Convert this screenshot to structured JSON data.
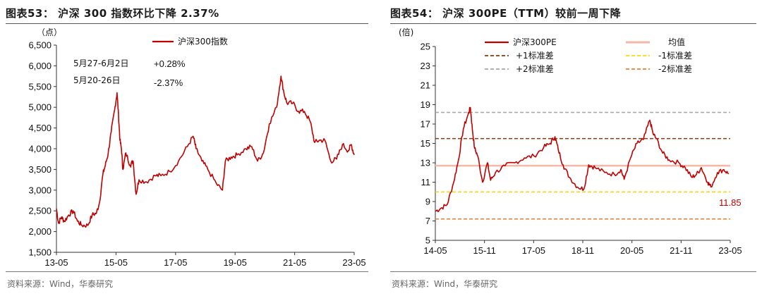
{
  "left": {
    "title": "图表53： 沪深 300 指数环比下降 2.37%",
    "source": "资料来源：Wind，华泰研究",
    "unit_label": "（点）",
    "annotations": [
      {
        "period": "5月27-6月2日",
        "change": "+0.28%"
      },
      {
        "period": "5月20-26日",
        "change": "-2.37%"
      }
    ]
  },
  "right": {
    "title": "图表54： 沪深 300PE（TTM）较前一周下降",
    "source": "资料来源：Wind，华泰研究",
    "unit_label": "(倍)",
    "last_value_label": "11.85"
  },
  "colors": {
    "series": "#c00000",
    "mean": "#f4b8a8",
    "plus1": "#843c0c",
    "plus2": "#a6a6a6",
    "minus1": "#ffd700",
    "minus2": "#ed7d31"
  },
  "chart_data": [
    {
      "type": "line",
      "title": "沪深 300 指数环比下降 2.37%",
      "ylabel": "（点）",
      "ylim": [
        1500,
        6500
      ],
      "yticks": [
        1500,
        2000,
        2500,
        3000,
        3500,
        4000,
        4500,
        5000,
        5500,
        6000,
        6500
      ],
      "xticks": [
        "13-05",
        "15-05",
        "17-05",
        "19-05",
        "21-05",
        "23-05"
      ],
      "x_range": [
        2013.33,
        2023.5
      ],
      "legend": "top-center",
      "grid": false,
      "series": [
        {
          "name": "沪深300指数",
          "x": [
            2013.33,
            2013.4,
            2013.5,
            2013.6,
            2013.75,
            2013.9,
            2014.05,
            2014.2,
            2014.4,
            2014.55,
            2014.7,
            2014.8,
            2014.92,
            2015.0,
            2015.1,
            2015.2,
            2015.32,
            2015.4,
            2015.45,
            2015.5,
            2015.55,
            2015.6,
            2015.7,
            2015.85,
            2015.95,
            2016.05,
            2016.15,
            2016.4,
            2016.7,
            2016.9,
            2017.2,
            2017.5,
            2017.8,
            2018.0,
            2018.1,
            2018.3,
            2018.5,
            2018.8,
            2019.0,
            2019.1,
            2019.3,
            2019.5,
            2019.8,
            2020.0,
            2020.2,
            2020.4,
            2020.6,
            2020.85,
            2021.0,
            2021.1,
            2021.2,
            2021.4,
            2021.6,
            2021.8,
            2022.0,
            2022.15,
            2022.3,
            2022.5,
            2022.7,
            2022.9,
            2023.1,
            2023.3,
            2023.4,
            2023.5
          ],
          "values": [
            2550,
            2200,
            2350,
            2250,
            2400,
            2500,
            2250,
            2150,
            2150,
            2400,
            2450,
            2700,
            3400,
            3600,
            3900,
            4400,
            4950,
            5350,
            4800,
            4200,
            4000,
            3500,
            3900,
            3600,
            3700,
            2900,
            3250,
            3200,
            3350,
            3350,
            3450,
            3700,
            4050,
            4300,
            4000,
            3700,
            3500,
            3150,
            3000,
            3700,
            3800,
            3850,
            4000,
            4050,
            3700,
            3900,
            4600,
            5000,
            5750,
            5350,
            5100,
            5100,
            4900,
            4900,
            4650,
            4150,
            4200,
            4200,
            3700,
            3750,
            4100,
            3950,
            4100,
            3850
          ]
        }
      ]
    },
    {
      "type": "line",
      "title": "沪深 300PE（TTM）较前一周下降",
      "ylabel": "(倍)",
      "ylim": [
        5,
        25
      ],
      "yticks": [
        5,
        7,
        9,
        11,
        13,
        15,
        17,
        19,
        21,
        23,
        25
      ],
      "xticks": [
        "14-05",
        "15-11",
        "17-05",
        "18-11",
        "20-05",
        "21-11",
        "23-05"
      ],
      "x_range": [
        2014.33,
        2023.5
      ],
      "legend": "top",
      "grid": false,
      "reference_lines": [
        {
          "name": "均值",
          "value": 12.7,
          "style": "solid"
        },
        {
          "name": "+1标准差",
          "value": 15.5,
          "style": "dashed"
        },
        {
          "name": "-1标准差",
          "value": 10.0,
          "style": "dashed"
        },
        {
          "name": "+2标准差",
          "value": 18.2,
          "style": "dashed"
        },
        {
          "name": "-2标准差",
          "value": 7.2,
          "style": "dashed"
        }
      ],
      "series": [
        {
          "name": "沪深300PE",
          "x": [
            2014.33,
            2014.5,
            2014.7,
            2014.9,
            2015.05,
            2015.2,
            2015.35,
            2015.42,
            2015.48,
            2015.55,
            2015.65,
            2015.8,
            2015.95,
            2016.05,
            2016.2,
            2016.5,
            2016.8,
            2017.1,
            2017.4,
            2017.7,
            2017.9,
            2018.05,
            2018.15,
            2018.3,
            2018.5,
            2018.75,
            2018.95,
            2019.1,
            2019.3,
            2019.6,
            2019.9,
            2020.1,
            2020.2,
            2020.4,
            2020.6,
            2020.8,
            2021.0,
            2021.1,
            2021.2,
            2021.4,
            2021.6,
            2021.9,
            2022.1,
            2022.3,
            2022.45,
            2022.6,
            2022.8,
            2022.9,
            2023.1,
            2023.3,
            2023.45
          ],
          "values": [
            8.0,
            8.3,
            8.7,
            11.0,
            13.3,
            16.5,
            18.0,
            18.7,
            16.5,
            14.5,
            13.7,
            11.0,
            13.0,
            11.2,
            12.0,
            12.7,
            13.0,
            13.5,
            13.7,
            14.6,
            15.0,
            15.7,
            14.4,
            12.8,
            11.5,
            10.5,
            10.3,
            12.8,
            12.5,
            12.0,
            11.8,
            12.3,
            11.3,
            13.5,
            15.0,
            15.4,
            17.4,
            16.0,
            15.5,
            14.0,
            13.3,
            13.0,
            12.5,
            11.5,
            11.8,
            12.5,
            11.0,
            10.5,
            12.0,
            12.3,
            11.85
          ]
        }
      ]
    }
  ]
}
